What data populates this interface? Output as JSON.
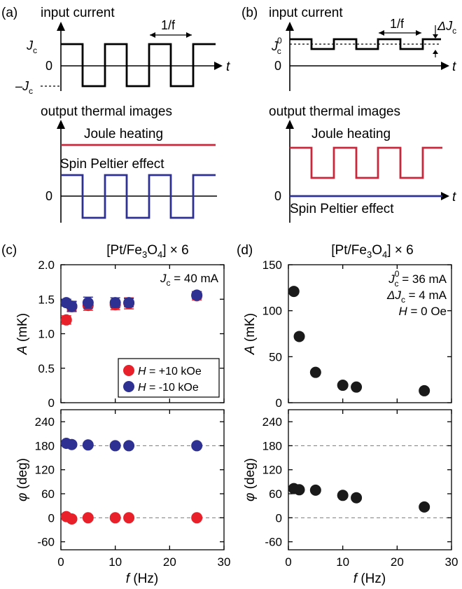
{
  "panels": {
    "a": {
      "letter": "(a)",
      "input_title": "input current",
      "output_title": "output thermal images",
      "period_label": "1/f",
      "jc_label": "J",
      "jc_sub": "c",
      "neg_jc_label": "–J",
      "zero_label": "0",
      "t_label": "t",
      "joule_label": "Joule heating",
      "spe_label": "Spin Peltier effect"
    },
    "b": {
      "letter": "(b)",
      "input_title": "input current",
      "output_title": "output thermal images",
      "period_label": "1/f",
      "jc0_label": "J",
      "jc0_sub": "c",
      "jc0_sup": "0",
      "delta_jc_label": "ΔJ",
      "delta_jc_sub": "c",
      "zero_label": "0",
      "t_label": "t",
      "joule_label": "Joule heating",
      "spe_label": "Spin Peltier effect"
    }
  },
  "colors": {
    "joule": "#c8283c",
    "spe": "#2e3192",
    "pos_field": "#e8202a",
    "neg_field": "#2e3192",
    "black_marker": "#1a1a1a"
  },
  "chart_data": [
    {
      "panel": "(c)",
      "type": "scatter",
      "title_parts": [
        "[Pt/Fe",
        "3",
        "O",
        "4",
        "] × 6"
      ],
      "annotation": [
        "J",
        "c",
        " = 40 mA"
      ],
      "ylabel": [
        "A",
        " (mK)"
      ],
      "ylim": [
        0,
        2.0
      ],
      "yticks": [
        "0",
        "0.5",
        "1.0",
        "1.5",
        "2.0"
      ],
      "legend": [
        "H = +10 kOe",
        "H = -10 kOe"
      ],
      "series": [
        {
          "name": "H = +10 kOe",
          "x": [
            1,
            2,
            5,
            10,
            12.5,
            25
          ],
          "y": [
            1.2,
            1.39,
            1.41,
            1.42,
            1.44,
            1.55
          ],
          "err": [
            0.06,
            0.07,
            0.07,
            0.07,
            0.08,
            0.06
          ]
        },
        {
          "name": "H = -10 kOe",
          "x": [
            1,
            2,
            5,
            10,
            12.5,
            25
          ],
          "y": [
            1.45,
            1.4,
            1.45,
            1.45,
            1.45,
            1.56
          ],
          "err": [
            0.05,
            0.07,
            0.08,
            0.07,
            0.06,
            0.05
          ]
        }
      ]
    },
    {
      "panel": "(c)",
      "type": "scatter",
      "ylabel": [
        "φ",
        " (deg)"
      ],
      "xlabel": [
        "f",
        " (Hz)"
      ],
      "xlim": [
        0,
        30
      ],
      "xticks": [
        "0",
        "10",
        "20",
        "30"
      ],
      "ylim": [
        -80,
        270
      ],
      "yticks": [
        "-60",
        "0",
        "60",
        "120",
        "180",
        "240"
      ],
      "reference_lines": [
        0,
        180
      ],
      "series": [
        {
          "name": "H = +10 kOe",
          "x": [
            1,
            2,
            5,
            10,
            12.5,
            25
          ],
          "y": [
            3,
            -3,
            0,
            0,
            0,
            0
          ]
        },
        {
          "name": "H = -10 kOe",
          "x": [
            1,
            2,
            5,
            10,
            12.5,
            25
          ],
          "y": [
            186,
            183,
            182,
            180,
            180,
            180
          ]
        }
      ]
    },
    {
      "panel": "(d)",
      "type": "scatter",
      "title_parts": [
        "[Pt/Fe",
        "3",
        "O",
        "4",
        "] × 6"
      ],
      "annotation_lines": [
        [
          "J",
          "c",
          "0",
          " = 36 mA"
        ],
        [
          "ΔJ",
          "c",
          "",
          " = 4 mA"
        ],
        [
          "H",
          "",
          "",
          " = 0 Oe"
        ]
      ],
      "ylabel": [
        "A",
        " (mK)"
      ],
      "ylim": [
        0,
        150
      ],
      "yticks": [
        "0",
        "50",
        "100",
        "150"
      ],
      "series": [
        {
          "x": [
            1,
            2,
            5,
            10,
            12.5,
            25
          ],
          "y": [
            121,
            72,
            33,
            19,
            17,
            13
          ]
        }
      ]
    },
    {
      "panel": "(d)",
      "type": "scatter",
      "ylabel": [
        "φ",
        " (deg)"
      ],
      "xlabel": [
        "f",
        " (Hz)"
      ],
      "xlim": [
        0,
        30
      ],
      "xticks": [
        "0",
        "10",
        "20",
        "30"
      ],
      "ylim": [
        -80,
        270
      ],
      "yticks": [
        "-60",
        "0",
        "60",
        "120",
        "180",
        "240"
      ],
      "reference_lines": [
        0,
        180
      ],
      "series": [
        {
          "x": [
            1,
            2,
            5,
            10,
            12.5,
            25
          ],
          "y": [
            73,
            70,
            69,
            56,
            50,
            27
          ]
        }
      ]
    }
  ]
}
